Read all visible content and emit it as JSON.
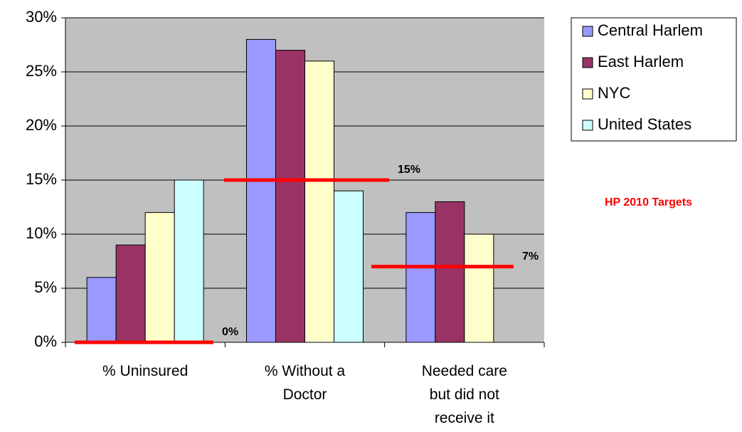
{
  "chart_data": {
    "type": "bar",
    "categories": [
      "% Uninsured",
      "% Without a Doctor",
      "Needed care but did not receive it"
    ],
    "series": [
      {
        "name": "Central Harlem",
        "color": "#9999ff",
        "values": [
          6,
          28,
          12
        ]
      },
      {
        "name": "East Harlem",
        "color": "#993366",
        "values": [
          9,
          27,
          13
        ]
      },
      {
        "name": "NYC",
        "color": "#ffffcc",
        "values": [
          12,
          26,
          10
        ]
      },
      {
        "name": "United States",
        "color": "#ccffff",
        "values": [
          15,
          14,
          null
        ]
      }
    ],
    "targets": {
      "values": [
        0,
        15,
        7
      ],
      "value_labels": [
        "0%",
        "15%",
        "7%"
      ],
      "color": "#ff0000"
    },
    "annotation": "HP 2010 Targets",
    "ylim": [
      0,
      30
    ],
    "yticks": [
      {
        "value": 0,
        "label": "0%"
      },
      {
        "value": 5,
        "label": "5%"
      },
      {
        "value": 10,
        "label": "10%"
      },
      {
        "value": 15,
        "label": "15%"
      },
      {
        "value": 20,
        "label": "20%"
      },
      {
        "value": 25,
        "label": "25%"
      },
      {
        "value": 30,
        "label": "30%"
      }
    ],
    "grid": true,
    "background": "#c0c0c0",
    "legend": "right"
  }
}
